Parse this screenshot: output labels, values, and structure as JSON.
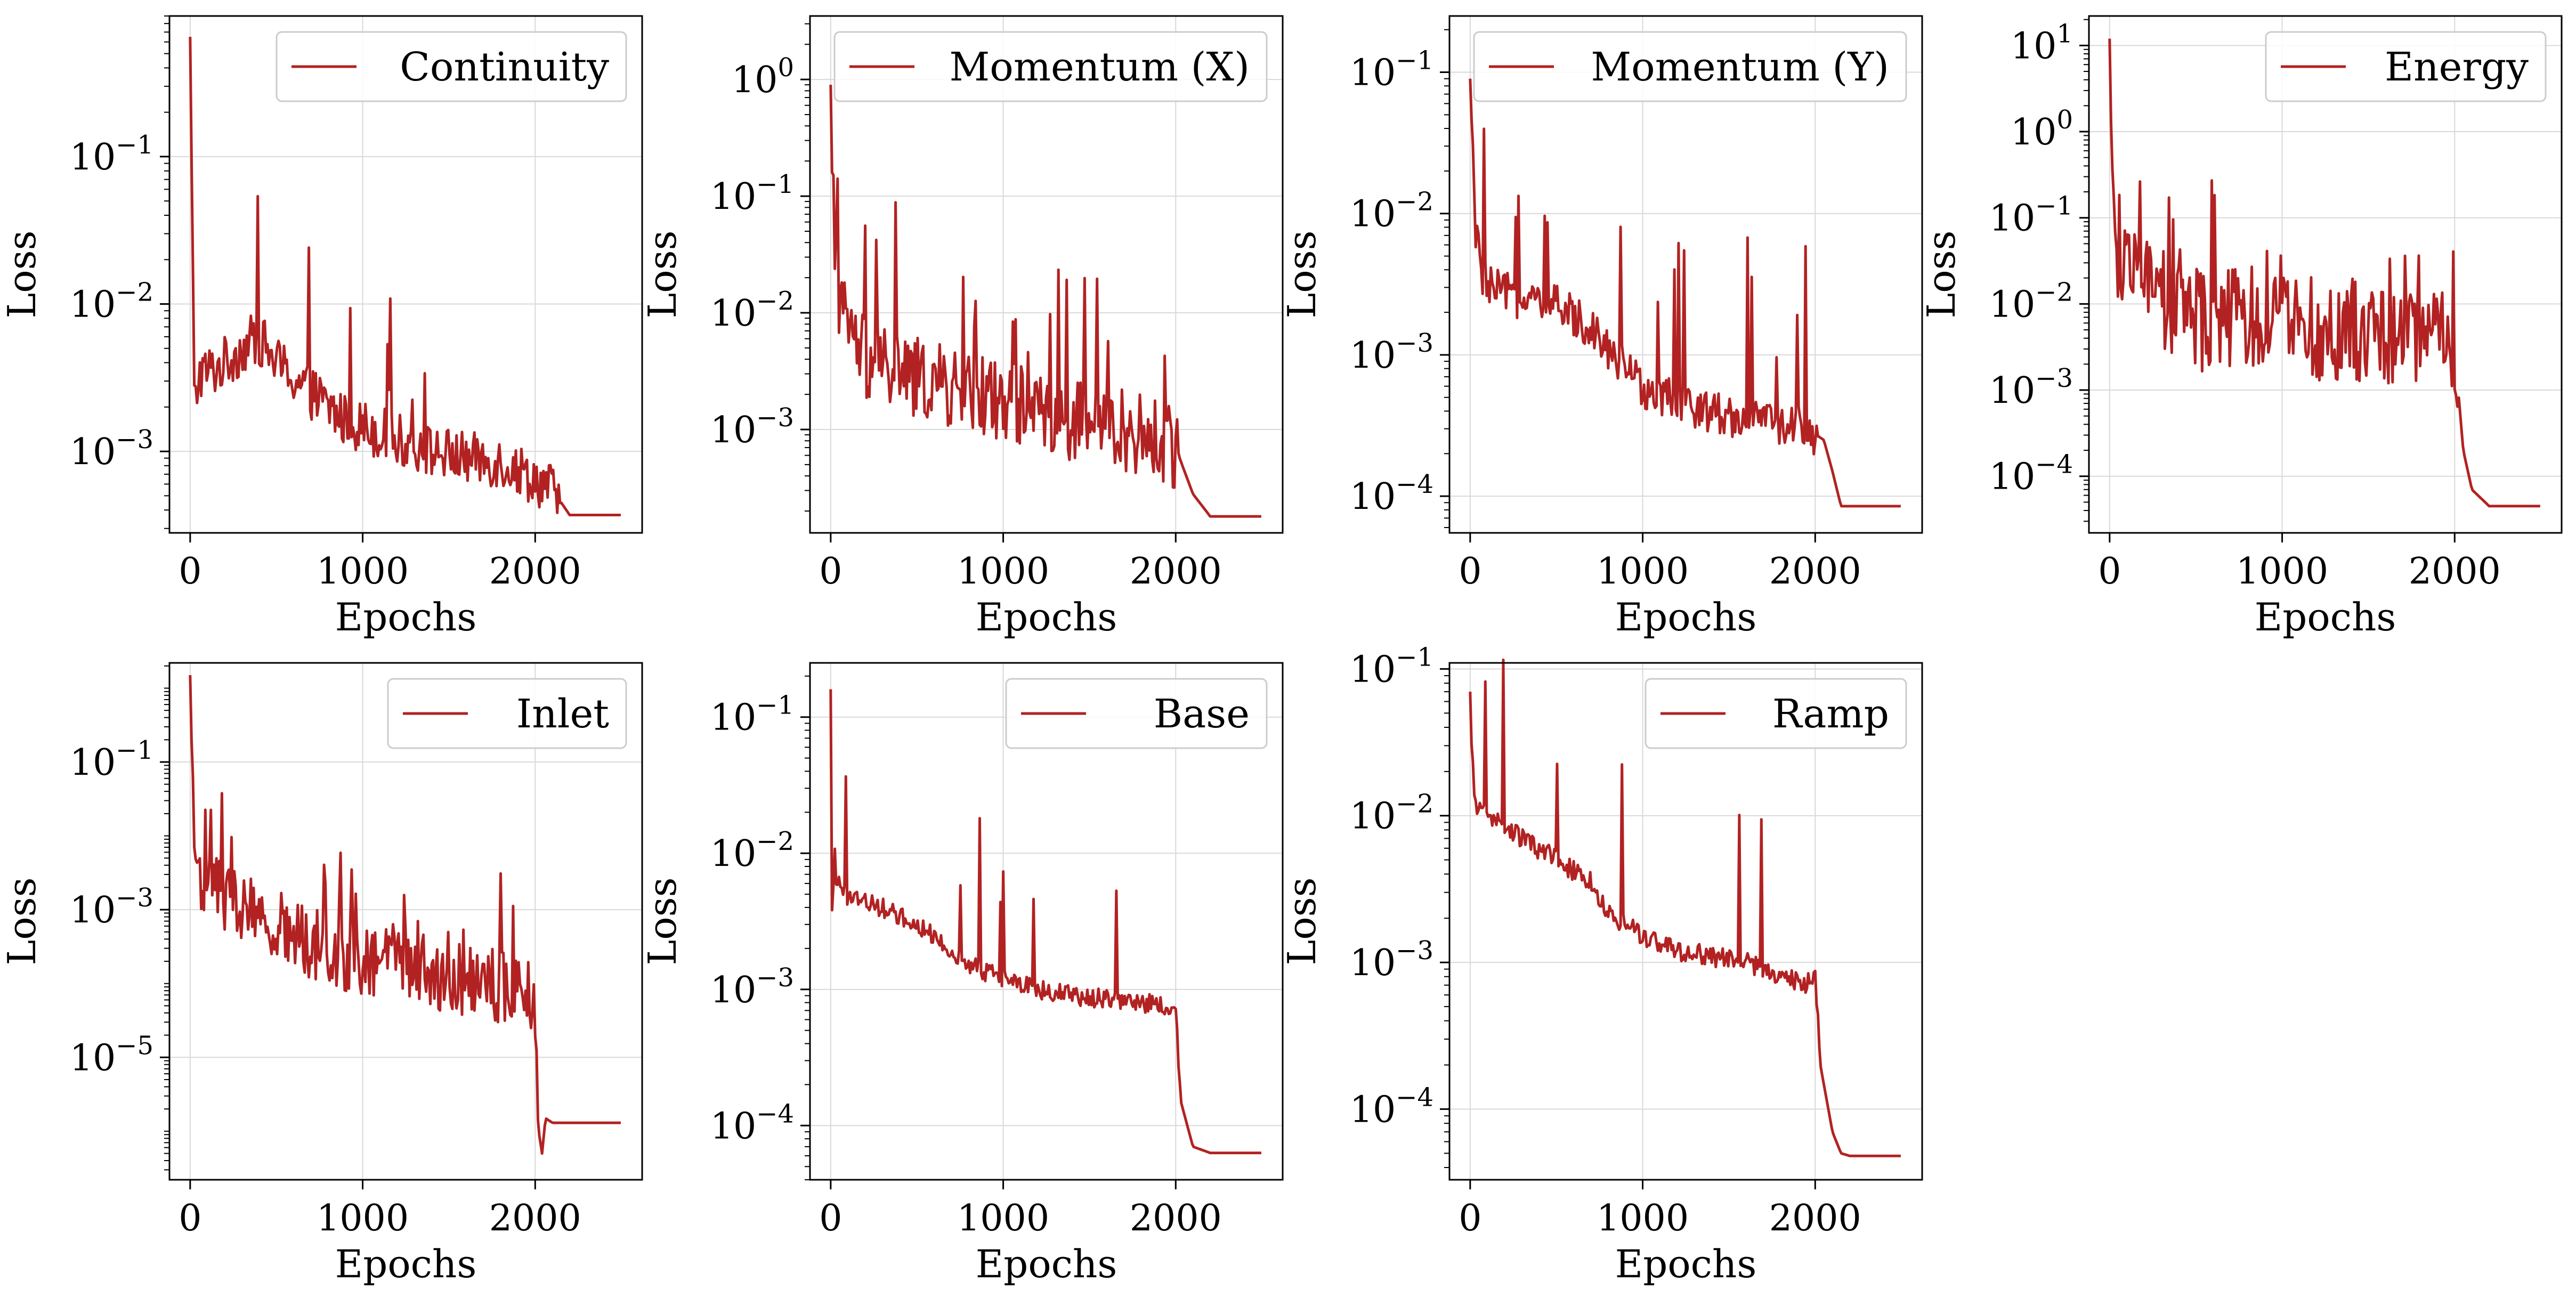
{
  "figure": {
    "background": "#ffffff",
    "line_color": "#b22222",
    "grid_color": "#d9d9d9"
  },
  "chart_data": [
    {
      "type": "line",
      "xlabel": "Epochs",
      "ylabel": "Loss",
      "yscale": "log",
      "xlim": [
        -120,
        2620
      ],
      "ylim": [
        0.00028,
        0.9
      ],
      "xticks": [
        0,
        1000,
        2000
      ],
      "yticks": [
        0.001,
        0.01,
        0.1
      ],
      "grid": true,
      "legend_position": "top-right",
      "series": [
        {
          "name": "Continuity",
          "style": "noisy",
          "noise": 0.18,
          "spikes": 0.04,
          "x": [
            0,
            25,
            50,
            150,
            350,
            400,
            500,
            700,
            900,
            1000,
            1200,
            1400,
            1600,
            1800,
            1950,
            2000,
            2100,
            2200,
            2500
          ],
          "y": [
            0.65,
            0.0018,
            0.0034,
            0.0036,
            0.0055,
            0.0058,
            0.004,
            0.0025,
            0.0016,
            0.0015,
            0.0012,
            0.001,
            0.0009,
            0.00085,
            0.0007,
            0.00065,
            0.00055,
            0.00037,
            0.00037
          ]
        }
      ]
    },
    {
      "type": "line",
      "xlabel": "Epochs",
      "ylabel": "Loss",
      "yscale": "log",
      "xlim": [
        -120,
        2620
      ],
      "ylim": [
        0.00013,
        3.5
      ],
      "xticks": [
        0,
        1000,
        2000
      ],
      "yticks": [
        0.001,
        0.01,
        0.1,
        1
      ],
      "grid": true,
      "legend_position": "top-right",
      "series": [
        {
          "name": "Momentum (X)",
          "style": "noisy",
          "noise": 0.35,
          "spikes": 0.12,
          "x": [
            0,
            20,
            60,
            200,
            400,
            600,
            800,
            1000,
            1200,
            1400,
            1600,
            1800,
            2000,
            2100,
            2200,
            2500
          ],
          "y": [
            0.9,
            0.012,
            0.01,
            0.004,
            0.003,
            0.0025,
            0.002,
            0.0018,
            0.0015,
            0.0012,
            0.0011,
            0.0009,
            0.0007,
            0.00028,
            0.00018,
            0.00018
          ]
        }
      ]
    },
    {
      "type": "line",
      "xlabel": "Epochs",
      "ylabel": "Loss",
      "yscale": "log",
      "xlim": [
        -120,
        2620
      ],
      "ylim": [
        5.5e-05,
        0.25
      ],
      "xticks": [
        0,
        1000,
        2000
      ],
      "yticks": [
        0.0001,
        0.001,
        0.01,
        0.1
      ],
      "grid": true,
      "legend_position": "top-right",
      "series": [
        {
          "name": "Momentum (Y)",
          "style": "noisy",
          "noise": 0.15,
          "spikes": 0.06,
          "x": [
            0,
            30,
            60,
            100,
            300,
            500,
            700,
            900,
            1000,
            1200,
            1400,
            1600,
            1800,
            1950,
            2050,
            2100,
            2150,
            2500
          ],
          "y": [
            0.09,
            0.008,
            0.004,
            0.003,
            0.0025,
            0.0022,
            0.0016,
            0.0008,
            0.0006,
            0.00045,
            0.0004,
            0.00035,
            0.00032,
            0.0003,
            0.00025,
            0.00015,
            8.5e-05,
            8.5e-05
          ]
        }
      ]
    },
    {
      "type": "line",
      "xlabel": "Epochs",
      "ylabel": "Loss",
      "yscale": "log",
      "xlim": [
        -120,
        2620
      ],
      "ylim": [
        2.2e-05,
        22
      ],
      "xticks": [
        0,
        1000,
        2000
      ],
      "yticks": [
        0.0001,
        0.001,
        0.01,
        0.1,
        1,
        10
      ],
      "grid": true,
      "legend_position": "top-right",
      "series": [
        {
          "name": "Energy",
          "style": "noisy",
          "noise": 0.6,
          "spikes": 0.1,
          "x": [
            0,
            20,
            50,
            200,
            400,
            600,
            800,
            1000,
            1200,
            1400,
            1600,
            1800,
            1950,
            2000,
            2050,
            2100,
            2200,
            2500
          ],
          "y": [
            12,
            0.05,
            0.02,
            0.015,
            0.008,
            0.006,
            0.007,
            0.006,
            0.005,
            0.005,
            0.004,
            0.004,
            0.004,
            0.003,
            0.0002,
            7e-05,
            4.5e-05,
            4.5e-05
          ]
        }
      ]
    },
    {
      "type": "line",
      "xlabel": "Epochs",
      "ylabel": "Loss",
      "yscale": "log",
      "xlim": [
        -120,
        2620
      ],
      "ylim": [
        2.2e-07,
        2.2
      ],
      "xticks": [
        0,
        1000,
        2000
      ],
      "yticks": [
        1e-05,
        0.001,
        0.1
      ],
      "grid": true,
      "legend_position": "top-right",
      "series": [
        {
          "name": "Inlet",
          "style": "noisy",
          "noise": 0.5,
          "spikes": 0.08,
          "x": [
            0,
            20,
            50,
            100,
            300,
            500,
            700,
            900,
            1100,
            1300,
            1500,
            1700,
            1900,
            2000,
            2020,
            2040,
            2060,
            2100,
            2500
          ],
          "y": [
            1.5,
            0.01,
            0.003,
            0.002,
            0.001,
            0.0006,
            0.00035,
            0.00025,
            0.0002,
            0.00015,
            0.00012,
            0.0001,
            8e-05,
            6e-05,
            1e-06,
            5e-07,
            1.5e-06,
            1.3e-06,
            1.3e-06
          ]
        }
      ]
    },
    {
      "type": "line",
      "xlabel": "Epochs",
      "ylabel": "Loss",
      "yscale": "log",
      "xlim": [
        -120,
        2620
      ],
      "ylim": [
        4e-05,
        0.25
      ],
      "xticks": [
        0,
        1000,
        2000
      ],
      "yticks": [
        0.0001,
        0.001,
        0.01,
        0.1
      ],
      "grid": true,
      "legend_position": "top-right",
      "series": [
        {
          "name": "Base",
          "style": "noisy",
          "noise": 0.07,
          "spikes": 0.03,
          "x": [
            0,
            10,
            20,
            30,
            60,
            200,
            400,
            600,
            800,
            1000,
            1200,
            1400,
            1600,
            1800,
            1950,
            2000,
            2030,
            2100,
            2200,
            2500
          ],
          "y": [
            0.16,
            0.0015,
            0.012,
            0.007,
            0.005,
            0.0045,
            0.0035,
            0.0025,
            0.0015,
            0.0012,
            0.001,
            0.0009,
            0.00085,
            0.0008,
            0.00075,
            0.0007,
            0.00015,
            7e-05,
            6.3e-05,
            6.3e-05
          ]
        }
      ]
    },
    {
      "type": "line",
      "xlabel": "Epochs",
      "ylabel": "Loss",
      "yscale": "log",
      "xlim": [
        -120,
        2620
      ],
      "ylim": [
        3.3e-05,
        0.11
      ],
      "xticks": [
        0,
        1000,
        2000
      ],
      "yticks": [
        0.0001,
        0.001,
        0.01,
        0.1
      ],
      "grid": true,
      "legend_position": "top-right",
      "series": [
        {
          "name": "Ramp",
          "style": "noisy",
          "noise": 0.07,
          "spikes": 0.04,
          "x": [
            0,
            10,
            30,
            100,
            300,
            500,
            700,
            800,
            1000,
            1200,
            1400,
            1600,
            1800,
            1950,
            2000,
            2030,
            2100,
            2150,
            2200,
            2500
          ],
          "y": [
            0.07,
            0.025,
            0.012,
            0.01,
            0.007,
            0.005,
            0.0035,
            0.0022,
            0.0015,
            0.0012,
            0.0011,
            0.001,
            0.0008,
            0.0007,
            0.0008,
            0.0002,
            7e-05,
            5e-05,
            4.8e-05,
            4.8e-05
          ]
        }
      ]
    }
  ]
}
